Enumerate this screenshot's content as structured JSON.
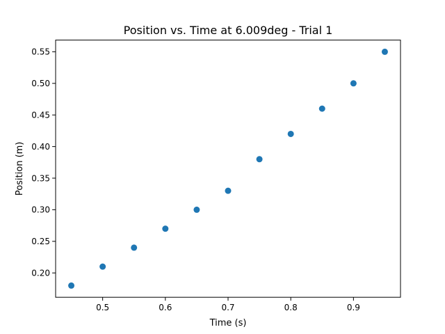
{
  "chart_data": {
    "type": "scatter",
    "title": "Position vs. Time at 6.009deg - Trial 1",
    "xlabel": "Time (s)",
    "ylabel": "Position (m)",
    "xlim": [
      0.425,
      0.975
    ],
    "ylim": [
      0.1615,
      0.5685
    ],
    "xticks": [
      0.5,
      0.6,
      0.7,
      0.8,
      0.9
    ],
    "xtick_labels": [
      "0.5",
      "0.6",
      "0.7",
      "0.8",
      "0.9"
    ],
    "yticks": [
      0.2,
      0.25,
      0.3,
      0.35,
      0.4,
      0.45,
      0.5,
      0.55
    ],
    "ytick_labels": [
      "0.20",
      "0.25",
      "0.30",
      "0.35",
      "0.40",
      "0.45",
      "0.50",
      "0.55"
    ],
    "grid": false,
    "marker_color": "#1f77b4",
    "series": [
      {
        "x": [
          0.45,
          0.5,
          0.55,
          0.6,
          0.65,
          0.7,
          0.75,
          0.8,
          0.85,
          0.9,
          0.95
        ],
        "y": [
          0.18,
          0.21,
          0.24,
          0.27,
          0.3,
          0.33,
          0.38,
          0.42,
          0.46,
          0.5,
          0.55
        ]
      }
    ]
  }
}
